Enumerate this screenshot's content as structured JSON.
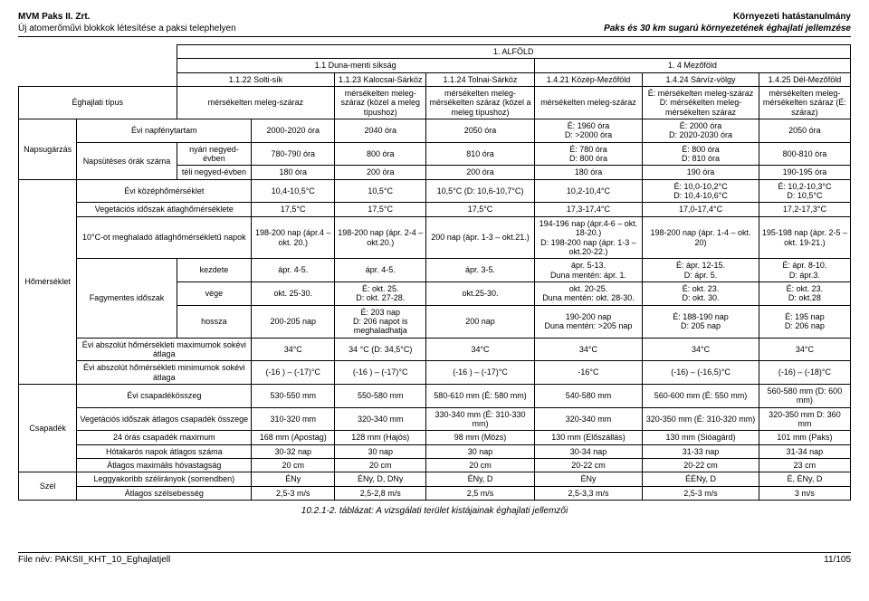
{
  "header": {
    "left1": "MVM Paks II. Zrt.",
    "left2": "Új atomerőművi blokkok létesítése a paksi telephelyen",
    "right1": "Környezeti hatástanulmány",
    "right2": "Paks és 30 km sugarú környezetének éghajlati jellemzése"
  },
  "top": {
    "alfold": "1. ALFÖLD",
    "dms": "1.1 Duna-menti síkság",
    "mezo": "1. 4 Mezőföld",
    "c_solti": "1.1.22 Solti-sík",
    "c_kalocsa": "1.1.23 Kalocsai-Sárköz",
    "c_tolna": "1.1.24 Tolnai-Sárköz",
    "c_kozep": "1.4.21 Közép-Mezőföld",
    "c_sarviz": "1.4.24 Sárvíz-völgy",
    "c_del": "1.4.25 Dél-Mezőföld",
    "eghajlat": "Éghajlati típus",
    "e1": "mérsékelten meleg-száraz",
    "e2": "mérsékelten meleg-száraz (közel a meleg típushoz)",
    "e3": "mérsékelten meleg-mérsékelten száraz (közel a meleg típushoz)",
    "e4": "mérsékelten meleg-száraz",
    "e5": "É: mérsékelten meleg-száraz D: mérsékelten meleg-mérsékelten száraz",
    "e6": "mérsékelten meleg-mérsékelten száraz (É: száraz)"
  },
  "rows": {
    "napsugar": "Napsugárzás",
    "homerseklet": "Hőmérséklet",
    "csapadek": "Csapadék",
    "szel": "Szél",
    "napfeny": "Évi napfénytartam",
    "napfeny_v": [
      "2000-2020 óra",
      "2040 óra",
      "2050 óra",
      "É: 1960 óra\nD: >2000 óra",
      "É: 2000 óra\nD: 2020-2030 óra",
      "2050 óra"
    ],
    "napsut": "Napsütéses órák száma",
    "napsut_sub1": "nyári negyed-évben",
    "napsut_sub1_v": [
      "780-790 óra",
      "800 óra",
      "810 óra",
      "É: 780 óra\nD: 800 óra",
      "É: 800 óra\nD: 810 óra",
      "800-810 óra"
    ],
    "napsut_sub2": "téli negyed-évben",
    "napsut_sub2_v": [
      "180 óra",
      "200 óra",
      "200 óra",
      "180 óra",
      "190 óra",
      "190-195 óra"
    ],
    "kozep": "Évi középhőmérséklet",
    "kozep_v": [
      "10,4-10,5°C",
      "10,5°C",
      "10,5°C (D: 10,6-10,7°C)",
      "10,2-10,4°C",
      "É: 10,0-10,2°C\nD: 10,4-10,6°C",
      "É: 10,2-10,3°C\nD: 10,5°C"
    ],
    "veget": "Vegetációs időszak átlaghőmérséklete",
    "veget_v": [
      "17,5°C",
      "17,5°C",
      "17,5°C",
      "17,3-17,4°C",
      "17,0-17,4°C",
      "17,2-17,3°C"
    ],
    "tenc": "10°C-ot meghaladó átlaghőmérsékletű napok",
    "tenc_v": [
      "198-200 nap (ápr.4 – okt. 20.)",
      "198-200 nap (ápr. 2-4 – okt.20.)",
      "200 nap (ápr. 1-3 – okt.21.)",
      "194-196 nap (ápr.4-6 – okt. 18-20.)\nD: 198-200 nap (ápr. 1-3 – okt.20-22.)",
      "198-200 nap (ápr. 1-4 – okt. 20)",
      "195-198 nap (ápr. 2-5 – okt. 19-21.)"
    ],
    "fagymentes": "Fagymentes időszak",
    "kezdete": "kezdete",
    "kezdete_v": [
      "ápr. 4-5.",
      "ápr. 4-5.",
      "ápr. 3-5.",
      "ápr. 5-13.\nDuna mentén: ápr. 1.",
      "É: ápr. 12-15.\nD: ápr. 5.",
      "É: ápr. 8-10.\nD: ápr.3."
    ],
    "vege": "vége",
    "vege_v": [
      "okt. 25-30.",
      "É: okt. 25.\nD: okt. 27-28.",
      "okt.25-30.",
      "okt. 20-25.\nDuna mentén: okt. 28-30.",
      "É: okt. 23.\nD: okt. 30.",
      "É: okt. 23.\nD: okt.28"
    ],
    "hossza": "hossza",
    "hossza_v": [
      "200-205 nap",
      "É: 203 nap\nD: 206 napot is meghaladhatja",
      "200 nap",
      "190-200 nap\nDuna mentén: >205 nap",
      "É: 188-190 nap\nD: 205 nap",
      "É: 195 nap\nD: 206 nap"
    ],
    "absmax": "Évi abszolút hőmérsékleti maximumok sokévi átlaga",
    "absmax_v": [
      "34°C",
      "34 °C (D: 34,5°C)",
      "34°C",
      "34°C",
      "34°C",
      "34°C"
    ],
    "absmin": "Évi abszolút hőmérsékleti minimumok sokévi átlaga",
    "absmin_v": [
      "(-16 ) – (-17)°C",
      "(-16 ) – (-17)°C",
      "(-16 ) – (-17)°C",
      "-16°C",
      "(-16) – (-16,5)°C",
      "(-16) – (-18)°C"
    ],
    "evicsap": "Évi csapadékösszeg",
    "evicsap_v": [
      "530-550 mm",
      "550-580 mm",
      "580-610 mm (É: 580 mm)",
      "540-580 mm",
      "560-600 mm (É: 550 mm)",
      "560-580 mm (D: 600 mm)"
    ],
    "vegcsap": "Vegetációs időszak átlagos csapadék összege",
    "vegcsap_v": [
      "310-320 mm",
      "320-340 mm",
      "330-340 mm (É: 310-330 mm)",
      "320-340 mm",
      "320-350 mm (É: 310-320 mm)",
      "320-350 mm D: 360 mm"
    ],
    "max24": "24 órás csapadék maximum",
    "max24_v": [
      "168 mm (Apostag)",
      "128 mm (Hajós)",
      "98 mm (Mözs)",
      "130 mm (Előszállás)",
      "130 mm (Sióagárd)",
      "101 mm (Paks)"
    ],
    "hotakar": "Hótakarós napok átlagos száma",
    "hotakar_v": [
      "30-32 nap",
      "30 nap",
      "30 nap",
      "30-34 nap",
      "31-33 nap",
      "31-34 nap"
    ],
    "hovast": "Átlagos maximális hóvastagság",
    "hovast_v": [
      "20 cm",
      "20 cm",
      "20 cm",
      "20-22 cm",
      "20-22 cm",
      "23 cm"
    ],
    "szelir": "Leggyakoribb szélirányok (sorrendben)",
    "szelir_v": [
      "ÉNy",
      "ÉNy, D, DNy",
      "ÉNy, D",
      "ÉNy",
      "ÉÉNy, D",
      "É, ÉNy, D"
    ],
    "szelseb": "Átlagos szélsebesség",
    "szelseb_v": [
      "2,5-3 m/s",
      "2,5-2,8 m/s",
      "2,5 m/s",
      "2,5-3,3 m/s",
      "2,5-3 m/s",
      "3 m/s"
    ]
  },
  "caption": "10.2.1-2. táblázat: A vizsgálati terület kistájainak éghajlati jellemzői",
  "footer": {
    "left": "File név: PAKSII_KHT_10_Eghajlatjell",
    "right": "11/105"
  }
}
